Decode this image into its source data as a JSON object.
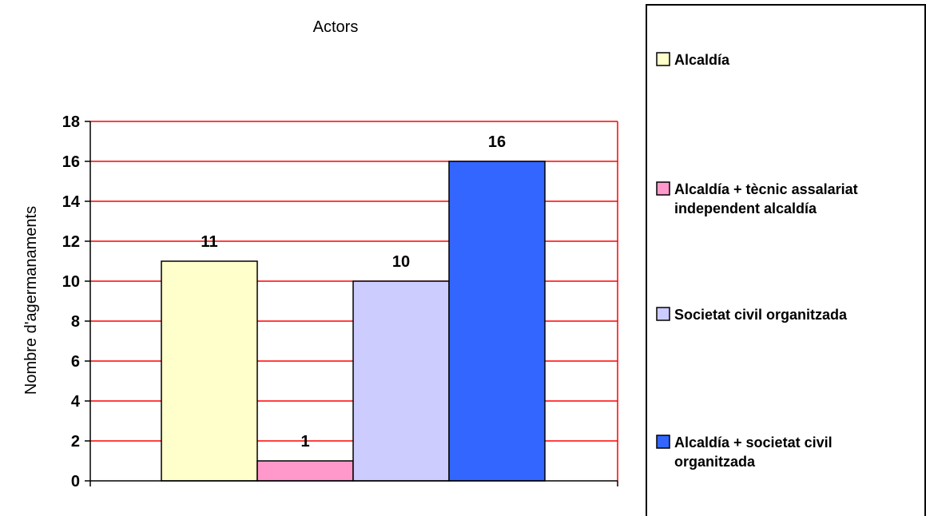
{
  "chart_data": {
    "type": "bar",
    "title": "Actors",
    "ylabel": "Nombre d'agermanaments",
    "xlabel": "",
    "ylim": [
      0,
      18
    ],
    "yticks": [
      0,
      2,
      4,
      6,
      8,
      10,
      12,
      14,
      16,
      18
    ],
    "grid": true,
    "legend_position": "right",
    "colors": {
      "grid": "#ff0000",
      "axis": "#000000",
      "bar_border": "#000000",
      "decoration_line": "#3366ff"
    },
    "series": [
      {
        "name": "Alcaldía",
        "value": 11,
        "color": "#ffffcc"
      },
      {
        "name": "Alcaldía + tècnic assalariat independent alcaldía",
        "value": 1,
        "color": "#ff99cc"
      },
      {
        "name": "Societat civil organitzada",
        "value": 10,
        "color": "#ccccff"
      },
      {
        "name": "Alcaldía + societat civil organitzada",
        "value": 16,
        "color": "#3366ff"
      }
    ]
  }
}
